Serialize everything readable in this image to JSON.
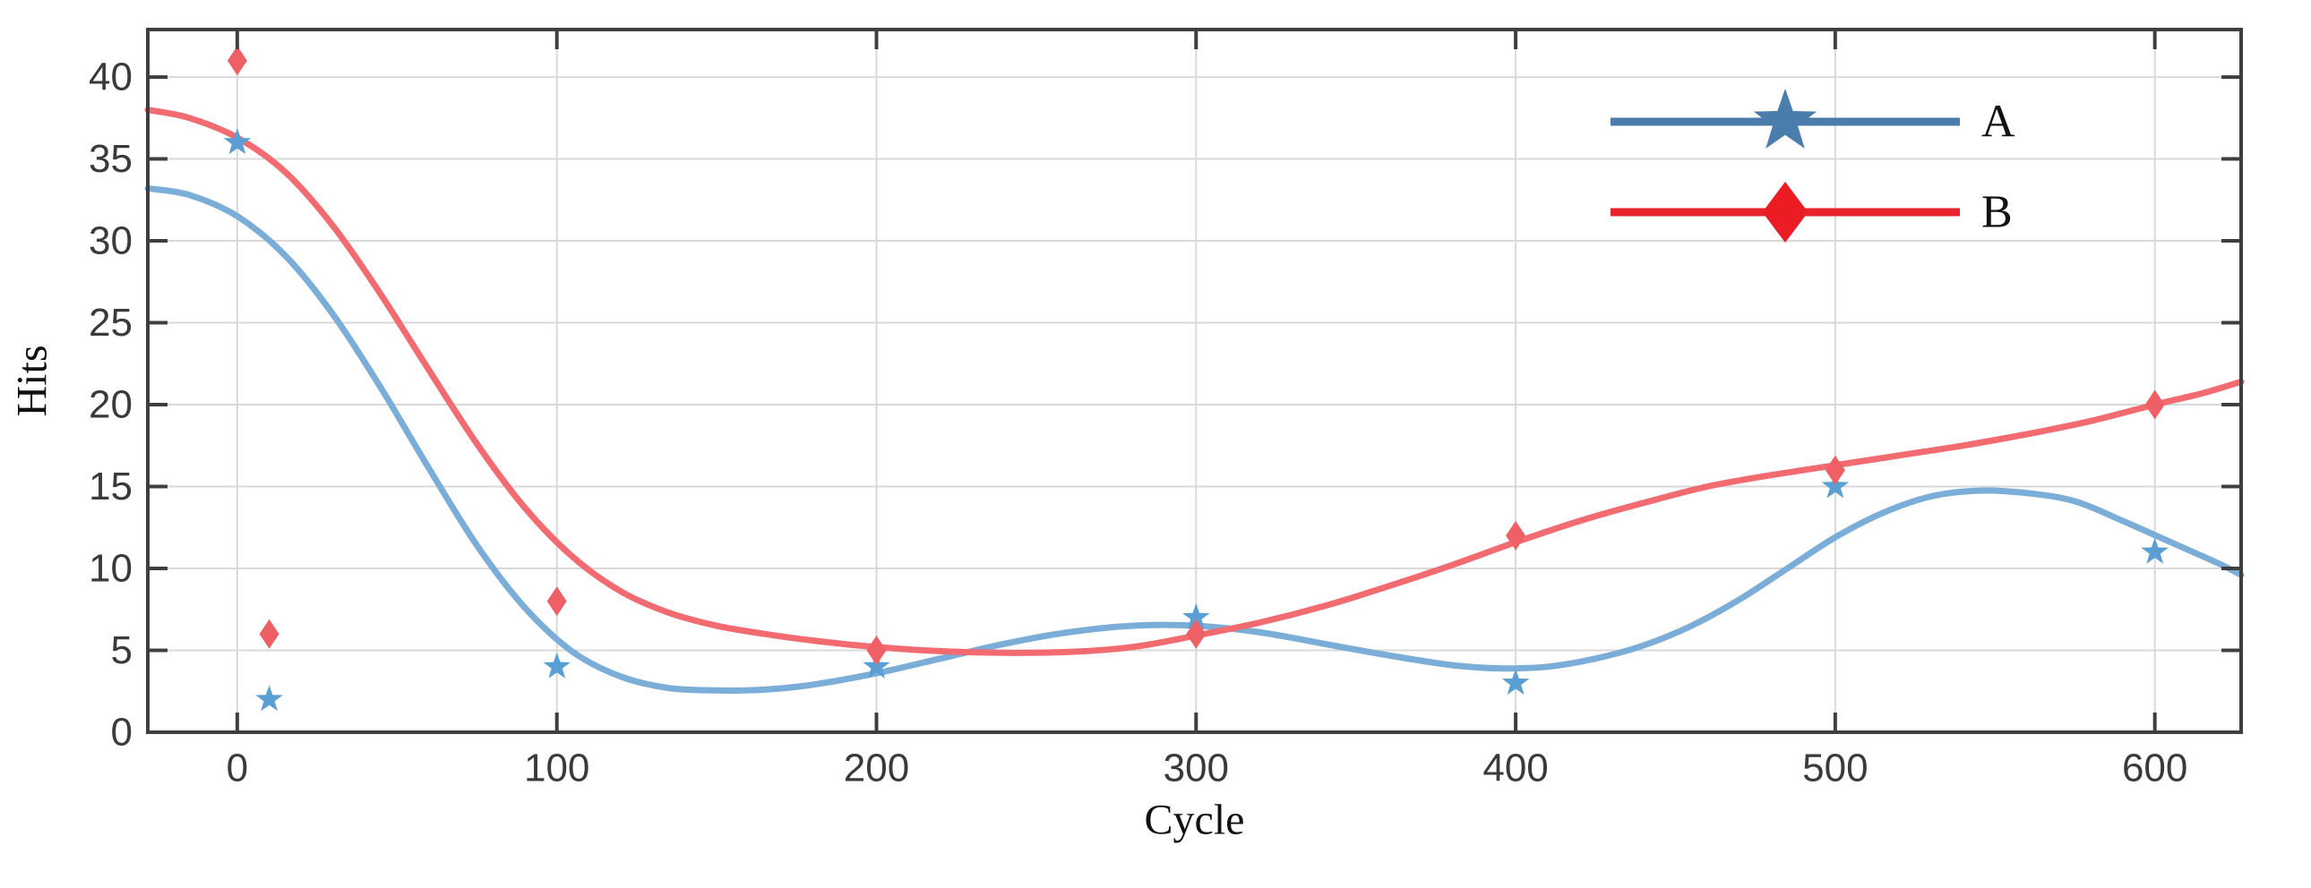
{
  "chart_data": {
    "type": "scatter",
    "title": "",
    "xlabel": "Cycle",
    "ylabel": "Hits",
    "xlim": [
      -28,
      627
    ],
    "ylim": [
      0,
      42.9
    ],
    "x_ticks": [
      0,
      100,
      200,
      300,
      400,
      500,
      600
    ],
    "y_ticks": [
      0,
      5,
      10,
      15,
      20,
      25,
      30,
      35,
      40
    ],
    "grid": true,
    "axis_color": "#3f3f3f",
    "grid_color": "#d9d9d9",
    "tick_label_color": "#3a3a3a",
    "background": "#ffffff",
    "legend": {
      "position": "top-right",
      "frame": false,
      "entries": [
        {
          "label": "A",
          "marker": "star",
          "line_color": "#4a7dab",
          "marker_color": "#4a7dab"
        },
        {
          "label": "B",
          "marker": "diamond",
          "line_color": "#e8232b",
          "marker_color": "#ec1c24"
        }
      ]
    },
    "series": [
      {
        "name": "A",
        "marker": "star",
        "curve_color": "#7badd9",
        "marker_color": "#5a9fd4",
        "points": [
          [
            0,
            36
          ],
          [
            10,
            2
          ],
          [
            100,
            4
          ],
          [
            200,
            4
          ],
          [
            300,
            7
          ],
          [
            400,
            3
          ],
          [
            500,
            15
          ],
          [
            600,
            11
          ]
        ],
        "fit_curve": [
          [
            -28,
            33.2
          ],
          [
            -15,
            32.8
          ],
          [
            0,
            31.5
          ],
          [
            15,
            29.1
          ],
          [
            30,
            25.5
          ],
          [
            45,
            21.0
          ],
          [
            60,
            16.1
          ],
          [
            75,
            11.4
          ],
          [
            90,
            7.6
          ],
          [
            105,
            4.9
          ],
          [
            120,
            3.4
          ],
          [
            135,
            2.7
          ],
          [
            150,
            2.55
          ],
          [
            165,
            2.6
          ],
          [
            180,
            2.9
          ],
          [
            200,
            3.6
          ],
          [
            220,
            4.5
          ],
          [
            240,
            5.4
          ],
          [
            260,
            6.1
          ],
          [
            280,
            6.5
          ],
          [
            300,
            6.5
          ],
          [
            320,
            6.1
          ],
          [
            340,
            5.4
          ],
          [
            360,
            4.7
          ],
          [
            380,
            4.1
          ],
          [
            395,
            3.9
          ],
          [
            410,
            4.0
          ],
          [
            425,
            4.5
          ],
          [
            440,
            5.3
          ],
          [
            455,
            6.5
          ],
          [
            470,
            8.1
          ],
          [
            485,
            10.0
          ],
          [
            500,
            11.9
          ],
          [
            515,
            13.4
          ],
          [
            530,
            14.4
          ],
          [
            545,
            14.75
          ],
          [
            560,
            14.6
          ],
          [
            575,
            14.1
          ],
          [
            590,
            12.9
          ],
          [
            605,
            11.6
          ],
          [
            620,
            10.3
          ],
          [
            627,
            9.6
          ]
        ]
      },
      {
        "name": "B",
        "marker": "diamond",
        "curve_color": "#f26b70",
        "marker_color": "#ee5f66",
        "points": [
          [
            0,
            41
          ],
          [
            10,
            6
          ],
          [
            100,
            8
          ],
          [
            200,
            5
          ],
          [
            300,
            6
          ],
          [
            400,
            12
          ],
          [
            500,
            16
          ],
          [
            600,
            20
          ]
        ],
        "fit_curve": [
          [
            -28,
            38.0
          ],
          [
            -15,
            37.5
          ],
          [
            0,
            36.3
          ],
          [
            15,
            34.2
          ],
          [
            30,
            30.9
          ],
          [
            45,
            26.7
          ],
          [
            60,
            22.1
          ],
          [
            75,
            17.6
          ],
          [
            90,
            13.7
          ],
          [
            105,
            10.7
          ],
          [
            120,
            8.6
          ],
          [
            135,
            7.3
          ],
          [
            150,
            6.5
          ],
          [
            165,
            6.0
          ],
          [
            180,
            5.6
          ],
          [
            200,
            5.2
          ],
          [
            220,
            4.95
          ],
          [
            240,
            4.85
          ],
          [
            260,
            4.9
          ],
          [
            280,
            5.2
          ],
          [
            300,
            5.9
          ],
          [
            320,
            6.7
          ],
          [
            340,
            7.7
          ],
          [
            360,
            8.9
          ],
          [
            380,
            10.2
          ],
          [
            400,
            11.6
          ],
          [
            420,
            12.9
          ],
          [
            440,
            14.0
          ],
          [
            460,
            15.0
          ],
          [
            480,
            15.7
          ],
          [
            500,
            16.3
          ],
          [
            520,
            16.9
          ],
          [
            540,
            17.5
          ],
          [
            560,
            18.2
          ],
          [
            580,
            19.0
          ],
          [
            600,
            20.0
          ],
          [
            615,
            20.7
          ],
          [
            627,
            21.4
          ]
        ]
      }
    ]
  }
}
